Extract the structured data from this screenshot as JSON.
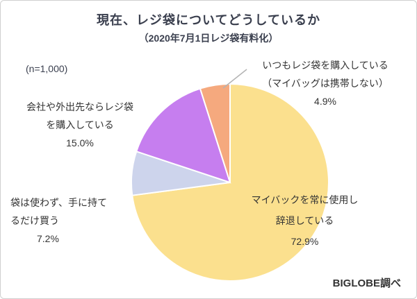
{
  "chart_data": {
    "type": "pie",
    "title": "現在、レジ袋についてどうしているか",
    "subtitle": "（2020年7月1日レジ袋有料化）",
    "sample_size": "(n=1,000)",
    "legend": "none",
    "start_angle_deg": -90,
    "direction": "clockwise",
    "source": "BIGLOBE調べ",
    "slices": [
      {
        "label": "マイバックを常に使用し辞退している",
        "value": 72.9,
        "display": "72.9%",
        "color": "#FBE08E"
      },
      {
        "label": "袋は使わず、手に持てるだけ買う",
        "value": 7.2,
        "display": "7.2%",
        "color": "#CDD4EC"
      },
      {
        "label": "会社や外出先ならレジ袋を購入している",
        "value": 15.0,
        "display": "15.0%",
        "color": "#C67EEF"
      },
      {
        "label": "いつもレジ袋を購入している（マイバッグは携帯しない）",
        "value": 4.9,
        "display": "4.9%",
        "color": "#F5A97E"
      }
    ]
  },
  "annotations": {
    "always_buy": {
      "line1": "いつもレジ袋を購入している",
      "line2": "（マイバッグは携帯しない）"
    },
    "office_buy": {
      "line1": "会社や外出先ならレジ袋",
      "line2": "を購入している"
    },
    "hand_carry": {
      "line1": "袋は使わず、手に持て",
      "line2": "るだけ買う"
    },
    "mybag": {
      "line1": "マイバックを常に使用し",
      "line2": "辞退している"
    }
  }
}
